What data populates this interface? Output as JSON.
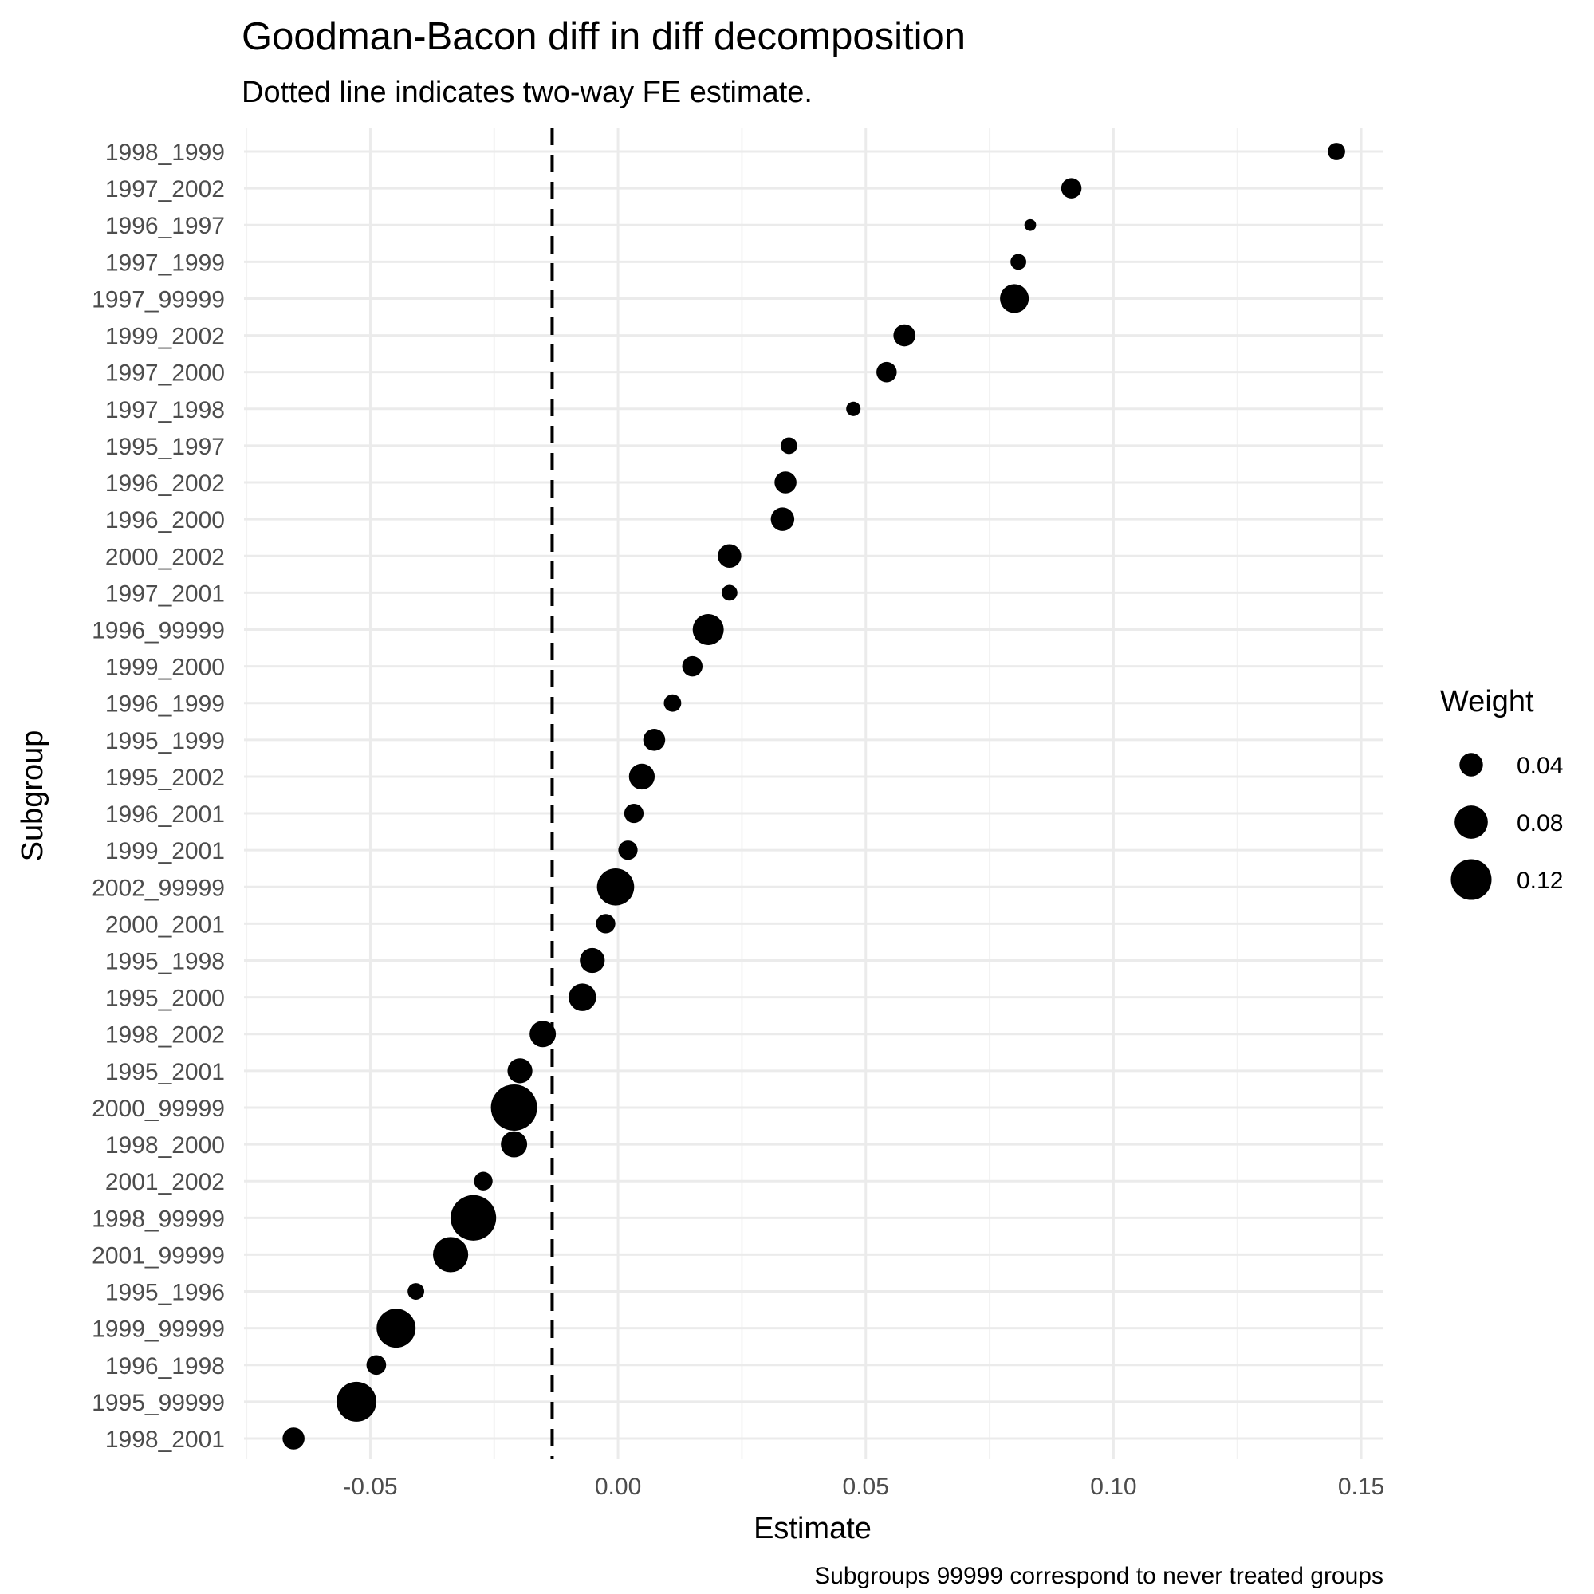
{
  "chart_data": {
    "type": "scatter",
    "title": "Goodman-Bacon diff in diff decomposition",
    "subtitle": "Dotted line indicates two-way FE estimate.",
    "xlabel": "Estimate",
    "ylabel": "Subgroup",
    "caption": "Subgroups 99999 correspond to never treated groups",
    "xlim": [
      -0.0755,
      0.1545
    ],
    "xticks": [
      -0.05,
      0.0,
      0.05,
      0.1,
      0.15
    ],
    "xtick_labels": [
      "-0.05",
      "0.00",
      "0.05",
      "0.10",
      "0.15"
    ],
    "reference_line": {
      "x": -0.0133,
      "style": "dashed"
    },
    "grid": true,
    "legend": {
      "title": "Weight",
      "position": "right",
      "entries": [
        {
          "label": "0.04",
          "weight": 0.04
        },
        {
          "label": "0.08",
          "weight": 0.08
        },
        {
          "label": "0.12",
          "weight": 0.12
        }
      ]
    },
    "points": [
      {
        "subgroup": "1998_1999",
        "estimate": 0.145,
        "weight": 0.022
      },
      {
        "subgroup": "1997_2002",
        "estimate": 0.0915,
        "weight": 0.03
      },
      {
        "subgroup": "1996_1997",
        "estimate": 0.0832,
        "weight": 0.01
      },
      {
        "subgroup": "1997_1999",
        "estimate": 0.0808,
        "weight": 0.018
      },
      {
        "subgroup": "1997_99999",
        "estimate": 0.08,
        "weight": 0.06
      },
      {
        "subgroup": "1999_2002",
        "estimate": 0.0578,
        "weight": 0.035
      },
      {
        "subgroup": "1997_2000",
        "estimate": 0.0542,
        "weight": 0.03
      },
      {
        "subgroup": "1997_1998",
        "estimate": 0.0475,
        "weight": 0.015
      },
      {
        "subgroup": "1995_1997",
        "estimate": 0.0345,
        "weight": 0.02
      },
      {
        "subgroup": "1996_2002",
        "estimate": 0.0338,
        "weight": 0.035
      },
      {
        "subgroup": "1996_2000",
        "estimate": 0.0332,
        "weight": 0.04
      },
      {
        "subgroup": "2000_2002",
        "estimate": 0.0225,
        "weight": 0.04
      },
      {
        "subgroup": "1997_2001",
        "estimate": 0.0225,
        "weight": 0.018
      },
      {
        "subgroup": "1996_99999",
        "estimate": 0.0182,
        "weight": 0.07
      },
      {
        "subgroup": "1999_2000",
        "estimate": 0.015,
        "weight": 0.03
      },
      {
        "subgroup": "1996_1999",
        "estimate": 0.011,
        "weight": 0.022
      },
      {
        "subgroup": "1995_1999",
        "estimate": 0.0073,
        "weight": 0.035
      },
      {
        "subgroup": "1995_2002",
        "estimate": 0.0048,
        "weight": 0.048
      },
      {
        "subgroup": "1996_2001",
        "estimate": 0.0032,
        "weight": 0.027
      },
      {
        "subgroup": "1999_2001",
        "estimate": 0.002,
        "weight": 0.027
      },
      {
        "subgroup": "2002_99999",
        "estimate": -0.0005,
        "weight": 0.1
      },
      {
        "subgroup": "2000_2001",
        "estimate": -0.0025,
        "weight": 0.027
      },
      {
        "subgroup": "1995_1998",
        "estimate": -0.0052,
        "weight": 0.045
      },
      {
        "subgroup": "1995_2000",
        "estimate": -0.0072,
        "weight": 0.055
      },
      {
        "subgroup": "1998_2002",
        "estimate": -0.0152,
        "weight": 0.05
      },
      {
        "subgroup": "1995_2001",
        "estimate": -0.0198,
        "weight": 0.045
      },
      {
        "subgroup": "2000_99999",
        "estimate": -0.021,
        "weight": 0.155
      },
      {
        "subgroup": "1998_2000",
        "estimate": -0.021,
        "weight": 0.05
      },
      {
        "subgroup": "2001_2002",
        "estimate": -0.0272,
        "weight": 0.025
      },
      {
        "subgroup": "1998_99999",
        "estimate": -0.0292,
        "weight": 0.15
      },
      {
        "subgroup": "2001_99999",
        "estimate": -0.0338,
        "weight": 0.09
      },
      {
        "subgroup": "1995_1996",
        "estimate": -0.0408,
        "weight": 0.02
      },
      {
        "subgroup": "1999_99999",
        "estimate": -0.0448,
        "weight": 0.11
      },
      {
        "subgroup": "1996_1998",
        "estimate": -0.0488,
        "weight": 0.028
      },
      {
        "subgroup": "1995_99999",
        "estimate": -0.0528,
        "weight": 0.115
      },
      {
        "subgroup": "1998_2001",
        "estimate": -0.0655,
        "weight": 0.035
      }
    ]
  }
}
